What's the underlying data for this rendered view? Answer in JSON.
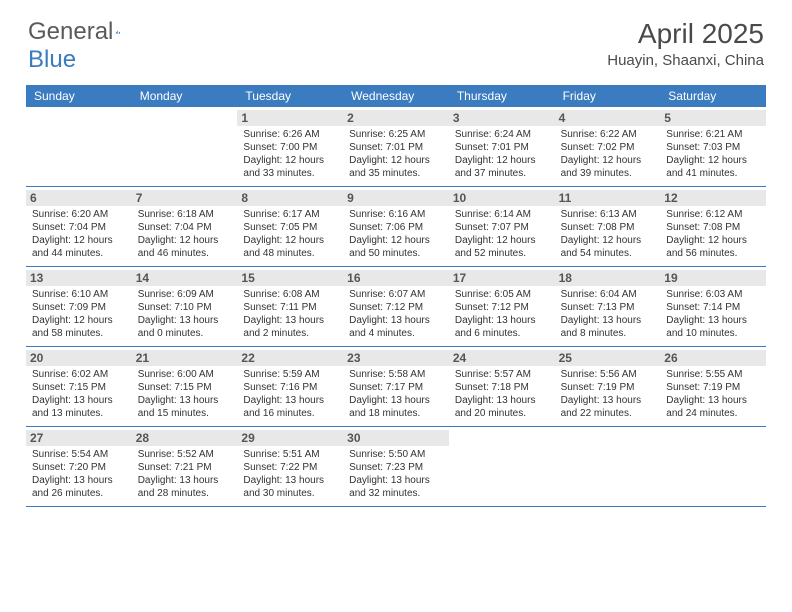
{
  "logo": {
    "text_gray": "General",
    "text_blue": "Blue"
  },
  "title": "April 2025",
  "location": "Huayin, Shaanxi, China",
  "colors": {
    "header_bar": "#3b7bbf",
    "daynum_bg": "#e8e8e8",
    "text_primary": "#333333",
    "text_muted": "#555555",
    "rule": "#3b7bbf"
  },
  "day_headers": [
    "Sunday",
    "Monday",
    "Tuesday",
    "Wednesday",
    "Thursday",
    "Friday",
    "Saturday"
  ],
  "weeks": [
    [
      {
        "n": "",
        "sr": "",
        "ss": "",
        "dl": "",
        "empty": true
      },
      {
        "n": "",
        "sr": "",
        "ss": "",
        "dl": "",
        "empty": true
      },
      {
        "n": "1",
        "sr": "Sunrise: 6:26 AM",
        "ss": "Sunset: 7:00 PM",
        "dl": "Daylight: 12 hours and 33 minutes."
      },
      {
        "n": "2",
        "sr": "Sunrise: 6:25 AM",
        "ss": "Sunset: 7:01 PM",
        "dl": "Daylight: 12 hours and 35 minutes."
      },
      {
        "n": "3",
        "sr": "Sunrise: 6:24 AM",
        "ss": "Sunset: 7:01 PM",
        "dl": "Daylight: 12 hours and 37 minutes."
      },
      {
        "n": "4",
        "sr": "Sunrise: 6:22 AM",
        "ss": "Sunset: 7:02 PM",
        "dl": "Daylight: 12 hours and 39 minutes."
      },
      {
        "n": "5",
        "sr": "Sunrise: 6:21 AM",
        "ss": "Sunset: 7:03 PM",
        "dl": "Daylight: 12 hours and 41 minutes."
      }
    ],
    [
      {
        "n": "6",
        "sr": "Sunrise: 6:20 AM",
        "ss": "Sunset: 7:04 PM",
        "dl": "Daylight: 12 hours and 44 minutes."
      },
      {
        "n": "7",
        "sr": "Sunrise: 6:18 AM",
        "ss": "Sunset: 7:04 PM",
        "dl": "Daylight: 12 hours and 46 minutes."
      },
      {
        "n": "8",
        "sr": "Sunrise: 6:17 AM",
        "ss": "Sunset: 7:05 PM",
        "dl": "Daylight: 12 hours and 48 minutes."
      },
      {
        "n": "9",
        "sr": "Sunrise: 6:16 AM",
        "ss": "Sunset: 7:06 PM",
        "dl": "Daylight: 12 hours and 50 minutes."
      },
      {
        "n": "10",
        "sr": "Sunrise: 6:14 AM",
        "ss": "Sunset: 7:07 PM",
        "dl": "Daylight: 12 hours and 52 minutes."
      },
      {
        "n": "11",
        "sr": "Sunrise: 6:13 AM",
        "ss": "Sunset: 7:08 PM",
        "dl": "Daylight: 12 hours and 54 minutes."
      },
      {
        "n": "12",
        "sr": "Sunrise: 6:12 AM",
        "ss": "Sunset: 7:08 PM",
        "dl": "Daylight: 12 hours and 56 minutes."
      }
    ],
    [
      {
        "n": "13",
        "sr": "Sunrise: 6:10 AM",
        "ss": "Sunset: 7:09 PM",
        "dl": "Daylight: 12 hours and 58 minutes."
      },
      {
        "n": "14",
        "sr": "Sunrise: 6:09 AM",
        "ss": "Sunset: 7:10 PM",
        "dl": "Daylight: 13 hours and 0 minutes."
      },
      {
        "n": "15",
        "sr": "Sunrise: 6:08 AM",
        "ss": "Sunset: 7:11 PM",
        "dl": "Daylight: 13 hours and 2 minutes."
      },
      {
        "n": "16",
        "sr": "Sunrise: 6:07 AM",
        "ss": "Sunset: 7:12 PM",
        "dl": "Daylight: 13 hours and 4 minutes."
      },
      {
        "n": "17",
        "sr": "Sunrise: 6:05 AM",
        "ss": "Sunset: 7:12 PM",
        "dl": "Daylight: 13 hours and 6 minutes."
      },
      {
        "n": "18",
        "sr": "Sunrise: 6:04 AM",
        "ss": "Sunset: 7:13 PM",
        "dl": "Daylight: 13 hours and 8 minutes."
      },
      {
        "n": "19",
        "sr": "Sunrise: 6:03 AM",
        "ss": "Sunset: 7:14 PM",
        "dl": "Daylight: 13 hours and 10 minutes."
      }
    ],
    [
      {
        "n": "20",
        "sr": "Sunrise: 6:02 AM",
        "ss": "Sunset: 7:15 PM",
        "dl": "Daylight: 13 hours and 13 minutes."
      },
      {
        "n": "21",
        "sr": "Sunrise: 6:00 AM",
        "ss": "Sunset: 7:15 PM",
        "dl": "Daylight: 13 hours and 15 minutes."
      },
      {
        "n": "22",
        "sr": "Sunrise: 5:59 AM",
        "ss": "Sunset: 7:16 PM",
        "dl": "Daylight: 13 hours and 16 minutes."
      },
      {
        "n": "23",
        "sr": "Sunrise: 5:58 AM",
        "ss": "Sunset: 7:17 PM",
        "dl": "Daylight: 13 hours and 18 minutes."
      },
      {
        "n": "24",
        "sr": "Sunrise: 5:57 AM",
        "ss": "Sunset: 7:18 PM",
        "dl": "Daylight: 13 hours and 20 minutes."
      },
      {
        "n": "25",
        "sr": "Sunrise: 5:56 AM",
        "ss": "Sunset: 7:19 PM",
        "dl": "Daylight: 13 hours and 22 minutes."
      },
      {
        "n": "26",
        "sr": "Sunrise: 5:55 AM",
        "ss": "Sunset: 7:19 PM",
        "dl": "Daylight: 13 hours and 24 minutes."
      }
    ],
    [
      {
        "n": "27",
        "sr": "Sunrise: 5:54 AM",
        "ss": "Sunset: 7:20 PM",
        "dl": "Daylight: 13 hours and 26 minutes."
      },
      {
        "n": "28",
        "sr": "Sunrise: 5:52 AM",
        "ss": "Sunset: 7:21 PM",
        "dl": "Daylight: 13 hours and 28 minutes."
      },
      {
        "n": "29",
        "sr": "Sunrise: 5:51 AM",
        "ss": "Sunset: 7:22 PM",
        "dl": "Daylight: 13 hours and 30 minutes."
      },
      {
        "n": "30",
        "sr": "Sunrise: 5:50 AM",
        "ss": "Sunset: 7:23 PM",
        "dl": "Daylight: 13 hours and 32 minutes."
      },
      {
        "n": "",
        "sr": "",
        "ss": "",
        "dl": "",
        "empty": true
      },
      {
        "n": "",
        "sr": "",
        "ss": "",
        "dl": "",
        "empty": true
      },
      {
        "n": "",
        "sr": "",
        "ss": "",
        "dl": "",
        "empty": true
      }
    ]
  ]
}
